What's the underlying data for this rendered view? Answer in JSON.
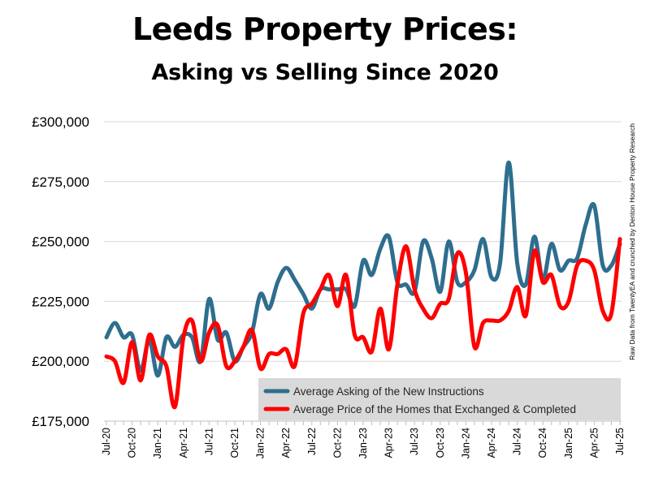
{
  "chart_data": {
    "type": "line",
    "title": "Leeds Property Prices:",
    "subtitle": "Asking vs Selling Since 2020",
    "source_note": "Raw Data from TwentyEA and crunched by Denton House Property Research",
    "ylim": [
      175000,
      300000
    ],
    "yticks": [
      {
        "value": 175000,
        "label": "£175,000"
      },
      {
        "value": 200000,
        "label": "£200,000"
      },
      {
        "value": 225000,
        "label": "£225,000"
      },
      {
        "value": 250000,
        "label": "£250,000"
      },
      {
        "value": 275000,
        "label": "£275,000"
      },
      {
        "value": 300000,
        "label": "£300,000"
      }
    ],
    "grid": true,
    "legend_position": "bottom-right",
    "x": [
      "Jul-20",
      "Aug-20",
      "Sep-20",
      "Oct-20",
      "Nov-20",
      "Dec-20",
      "Jan-21",
      "Feb-21",
      "Mar-21",
      "Apr-21",
      "May-21",
      "Jun-21",
      "Jul-21",
      "Aug-21",
      "Sep-21",
      "Oct-21",
      "Nov-21",
      "Dec-21",
      "Jan-22",
      "Feb-22",
      "Mar-22",
      "Apr-22",
      "May-22",
      "Jun-22",
      "Jul-22",
      "Aug-22",
      "Sep-22",
      "Oct-22",
      "Nov-22",
      "Dec-22",
      "Jan-23",
      "Feb-23",
      "Mar-23",
      "Apr-23",
      "May-23",
      "Jun-23",
      "Jul-23",
      "Aug-23",
      "Sep-23",
      "Oct-23",
      "Nov-23",
      "Dec-23",
      "Jan-24",
      "Feb-24",
      "Mar-24",
      "Apr-24",
      "May-24",
      "Jun-24",
      "Jul-24",
      "Aug-24",
      "Sep-24",
      "Oct-24",
      "Nov-24",
      "Dec-24",
      "Jan-25",
      "Feb-25",
      "Mar-25",
      "Apr-25",
      "May-25",
      "Jun-25",
      "Jul-25"
    ],
    "xtick_labels": [
      "Jul-20",
      "Oct-20",
      "Jan-21",
      "Apr-21",
      "Jul-21",
      "Oct-21",
      "Jan-22",
      "Apr-22",
      "Jul-22",
      "Oct-22",
      "Jan-23",
      "Apr-23",
      "Jul-23",
      "Oct-23",
      "Jan-24",
      "Apr-24",
      "Jul-24",
      "Oct-24",
      "Jan-25",
      "Apr-25",
      "Jul-25"
    ],
    "series": [
      {
        "name": "Average Asking of the New Instructions",
        "color": "#2E6E8E",
        "values": [
          210000,
          216000,
          210000,
          211000,
          196000,
          209000,
          194000,
          210000,
          206000,
          211000,
          210000,
          200000,
          226000,
          209000,
          212000,
          200000,
          206000,
          212000,
          228000,
          222000,
          233000,
          239000,
          234000,
          228000,
          222000,
          230000,
          230000,
          230000,
          230000,
          223000,
          242000,
          236000,
          247000,
          252000,
          233000,
          232000,
          229000,
          250000,
          243000,
          229000,
          250000,
          233000,
          233000,
          238000,
          251000,
          235000,
          241000,
          283000,
          241000,
          232000,
          252000,
          234000,
          249000,
          238000,
          242000,
          243000,
          257000,
          265000,
          240000,
          240000,
          249000
        ]
      },
      {
        "name": "Average Price of the Homes that Exchanged & Completed",
        "color": "#FF0000",
        "values": [
          202000,
          200000,
          191000,
          208000,
          192000,
          211000,
          202000,
          198000,
          181000,
          210000,
          217000,
          200000,
          212000,
          215000,
          198000,
          200000,
          206000,
          213000,
          197000,
          203000,
          203000,
          205000,
          198000,
          220000,
          224000,
          230000,
          236000,
          223000,
          236000,
          211000,
          210000,
          204000,
          222000,
          205000,
          232000,
          248000,
          230000,
          222000,
          218000,
          224000,
          226000,
          245000,
          237000,
          206000,
          216000,
          217000,
          217000,
          221000,
          231000,
          219000,
          246000,
          233000,
          236000,
          223000,
          225000,
          240000,
          242000,
          238000,
          221000,
          220000,
          251000
        ]
      }
    ]
  }
}
